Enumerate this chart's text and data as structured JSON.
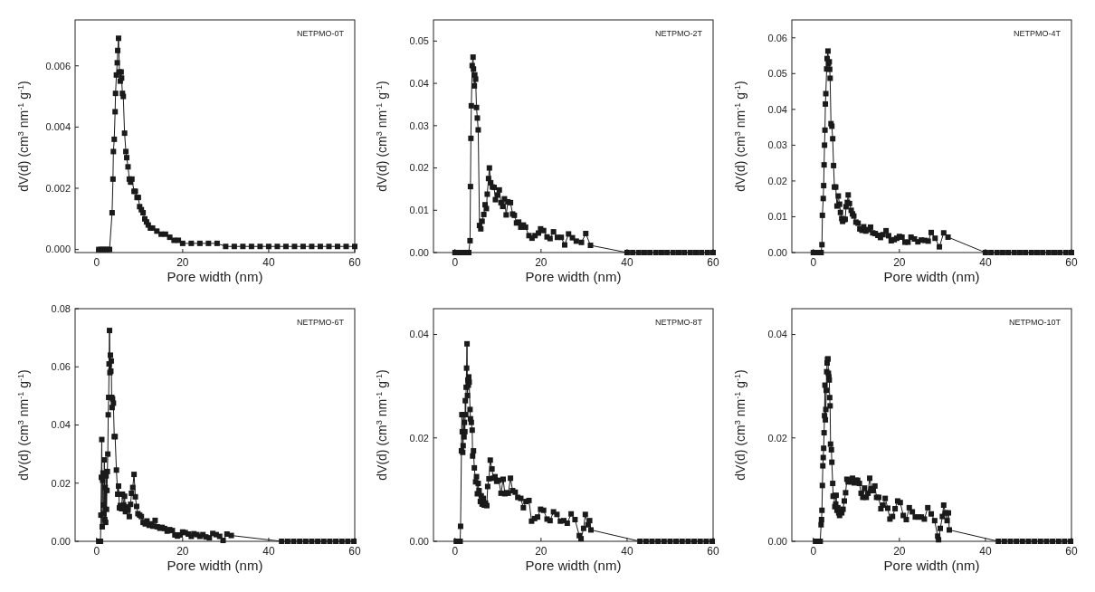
{
  "chart_data": [
    {
      "type": "line",
      "annotations": [
        "NETPMO-0T"
      ],
      "xlabel": "Pore width (nm)",
      "ylabel": "dV(d) (cm$^{3}$ nm$^{-1}$ g$^{-1}$)",
      "xlim": [
        -5,
        60
      ],
      "ylim": [
        -0.0001,
        0.0075
      ],
      "xticks": [
        0,
        20,
        40,
        60
      ],
      "yticks": [
        {
          "value": 0,
          "label": "0.000"
        },
        {
          "value": 0.002,
          "label": "0.002"
        },
        {
          "value": 0.004,
          "label": "0.004"
        },
        {
          "value": 0.006,
          "label": "0.006"
        }
      ],
      "marker": "square",
      "series": [
        {
          "color": "#1a1a1a",
          "x": [
            0.5,
            1,
            1.5,
            2,
            2.5,
            3,
            3.6,
            3.8,
            3.9,
            4.1,
            4.3,
            4.4,
            4.6,
            4.8,
            4.9,
            5.1,
            5.3,
            5.5,
            5.7,
            5.8,
            6.0,
            6.2,
            6.5,
            6.8,
            7.0,
            7.3,
            7.6,
            7.9,
            8.2,
            8.7,
            9.0,
            9.4,
            9.7,
            10.0,
            10.4,
            10.8,
            11.2,
            11.6,
            12.0,
            12.5,
            13,
            14,
            15,
            16,
            17,
            18,
            19,
            20,
            22,
            24,
            26,
            28,
            30,
            32,
            34,
            36,
            38,
            40,
            42,
            44,
            46,
            48,
            50,
            52,
            54,
            56,
            58,
            60
          ],
          "values": [
            0,
            0,
            0,
            0,
            0,
            0,
            0.0012,
            0.0023,
            0.0032,
            0.0036,
            0.0045,
            0.0051,
            0.0057,
            0.0061,
            0.0065,
            0.0069,
            0.0058,
            0.0055,
            0.0058,
            0.0056,
            0.0051,
            0.005,
            0.0038,
            0.0032,
            0.003,
            0.0027,
            0.0023,
            0.0022,
            0.0023,
            0.0019,
            0.0019,
            0.0017,
            0.0017,
            0.0014,
            0.0013,
            0.0012,
            0.001,
            0.0009,
            0.0008,
            0.0007,
            0.0007,
            0.0006,
            0.0005,
            0.0005,
            0.0004,
            0.0003,
            0.0003,
            0.0002,
            0.0002,
            0.0002,
            0.0002,
            0.0002,
            0.0001,
            0.0001,
            0.0001,
            0.0001,
            0.0001,
            0.0001,
            0.0001,
            0.0001,
            0.0001,
            0.0001,
            0.0001,
            0.0001,
            0.0001,
            0.0001,
            0.0001,
            0.0001
          ]
        }
      ]
    },
    {
      "type": "line",
      "annotations": [
        "NETPMO-2T"
      ],
      "xlabel": "Pore width (nm)",
      "ylabel": "dV(d) (cm$^{3}$ nm$^{-1}$ g$^{-1}$)",
      "xlim": [
        -5,
        60
      ],
      "ylim": [
        0,
        0.055
      ],
      "xticks": [
        0,
        20,
        40,
        60
      ],
      "yticks": [
        {
          "value": 0,
          "label": "0.00"
        },
        {
          "value": 0.01,
          "label": "0.01"
        },
        {
          "value": 0.02,
          "label": "0.02"
        },
        {
          "value": 0.03,
          "label": "0.03"
        },
        {
          "value": 0.04,
          "label": "0.04"
        },
        {
          "value": 0.05,
          "label": "0.05"
        }
      ],
      "marker": "square",
      "series": [
        {
          "color": "#1a1a1a",
          "x": [
            0,
            0.5,
            1,
            1.5,
            2,
            2.5,
            3,
            3.2,
            3.5,
            3.6,
            3.7,
            3.8,
            4.0,
            4.2,
            4.3,
            4.5,
            4.6,
            4.8,
            5.0,
            5.2,
            5.4,
            5.7,
            6.0,
            6.3,
            6.7,
            7.0,
            7.3,
            7.5,
            7.8,
            8.0,
            8.3,
            8.7,
            9.1,
            9.4,
            9.9,
            10.3,
            10.7,
            11.1,
            11.5,
            11.9,
            12.3,
            12.9,
            13.4,
            13.8,
            14.3,
            14.8,
            15.3,
            15.9,
            16.4,
            17.2,
            17.9,
            18.6,
            19.4,
            19.9,
            20.6,
            21.4,
            22.1,
            22.9,
            23.8,
            24.7,
            25.5,
            26.4,
            27.3,
            28.2,
            29.4,
            30.4,
            31.5,
            40,
            41.3,
            42.7,
            44,
            45.3,
            46.7,
            48,
            49.3,
            50.7,
            52,
            53.3,
            54.7,
            56,
            57.3,
            58.7,
            60
          ],
          "values": [
            0,
            0,
            0,
            0,
            0,
            0,
            0,
            0,
            0.0028,
            0.0156,
            0.027,
            0.0347,
            0.0442,
            0.0462,
            0.0434,
            0.0394,
            0.042,
            0.041,
            0.0343,
            0.0318,
            0.029,
            0.0064,
            0.0056,
            0.0074,
            0.009,
            0.0113,
            0.0104,
            0.0138,
            0.0175,
            0.02,
            0.0165,
            0.0155,
            0.0154,
            0.0125,
            0.0136,
            0.0148,
            0.0118,
            0.0109,
            0.0127,
            0.0089,
            0.012,
            0.0118,
            0.0091,
            0.0088,
            0.007,
            0.0072,
            0.006,
            0.0065,
            0.006,
            0.004,
            0.0034,
            0.004,
            0.0046,
            0.0056,
            0.0052,
            0.0037,
            0.0033,
            0.0049,
            0.0036,
            0.0036,
            0.0018,
            0.0044,
            0.0035,
            0.0027,
            0.0024,
            0.0045,
            0.0017,
            0,
            0,
            0,
            0,
            0,
            0,
            0,
            0,
            0,
            0,
            0,
            0,
            0,
            0,
            0,
            0
          ]
        }
      ]
    },
    {
      "type": "line",
      "annotations": [
        "NETPMO-4T"
      ],
      "xlabel": "Pore width (nm)",
      "ylabel": "dV(d) (cm$^{3}$ nm$^{-1}$ g$^{-1}$)",
      "xlim": [
        -5,
        60
      ],
      "ylim": [
        0,
        0.065
      ],
      "xticks": [
        0,
        20,
        40,
        60
      ],
      "yticks": [
        {
          "value": 0,
          "label": "0.00"
        },
        {
          "value": 0.01,
          "label": "0.01"
        },
        {
          "value": 0.02,
          "label": "0.02"
        },
        {
          "value": 0.03,
          "label": "0.03"
        },
        {
          "value": 0.04,
          "label": "0.04"
        },
        {
          "value": 0.05,
          "label": "0.05"
        },
        {
          "value": 0.06,
          "label": "0.06"
        }
      ],
      "marker": "square",
      "series": [
        {
          "color": "#1a1a1a",
          "x": [
            0,
            0.5,
            1,
            1.5,
            1.8,
            2.0,
            2.1,
            2.3,
            2.4,
            2.5,
            2.6,
            2.7,
            2.8,
            2.9,
            3.1,
            3.2,
            3.4,
            3.5,
            3.7,
            3.8,
            3.9,
            4.1,
            4.3,
            4.5,
            4.7,
            4.9,
            5.2,
            5.5,
            5.8,
            6.1,
            6.3,
            6.6,
            6.8,
            7.1,
            7.4,
            7.6,
            7.9,
            8.1,
            8.4,
            8.8,
            9.1,
            9.4,
            9.9,
            10.4,
            10.8,
            11.3,
            11.7,
            12.2,
            12.8,
            13.3,
            13.8,
            14.4,
            15,
            15.6,
            16.2,
            16.9,
            17.5,
            18.1,
            18.8,
            19.4,
            20,
            20.6,
            21.3,
            22,
            22.7,
            23.5,
            24.3,
            25.1,
            25.9,
            26.7,
            27.4,
            28.3,
            29.3,
            30.3,
            31.3,
            40,
            41.3,
            42.7,
            44,
            45.3,
            46.7,
            48,
            49.3,
            50.7,
            52,
            53.3,
            54.7,
            56,
            57.3,
            58.7,
            60
          ],
          "values": [
            0,
            0,
            0,
            0,
            0,
            0.0022,
            0.0104,
            0.0151,
            0.0187,
            0.0245,
            0.03,
            0.0342,
            0.0415,
            0.0444,
            0.0513,
            0.0542,
            0.0563,
            0.0528,
            0.0533,
            0.0512,
            0.0487,
            0.036,
            0.0353,
            0.0318,
            0.0243,
            0.0183,
            0.0183,
            0.013,
            0.0158,
            0.0135,
            0.0112,
            0.0095,
            0.0087,
            0.0092,
            0.0093,
            0.0128,
            0.014,
            0.0161,
            0.0137,
            0.0118,
            0.0108,
            0.0102,
            0.0085,
            0.0082,
            0.0066,
            0.0062,
            0.0072,
            0.006,
            0.0064,
            0.0071,
            0.0055,
            0.0053,
            0.0048,
            0.0042,
            0.005,
            0.0061,
            0.0047,
            0.0033,
            0.0036,
            0.004,
            0.0045,
            0.0043,
            0.0029,
            0.0029,
            0.0043,
            0.0038,
            0.003,
            0.0035,
            0.0034,
            0.0032,
            0.0056,
            0.004,
            0.0016,
            0.0055,
            0.0043,
            0,
            0,
            0,
            0,
            0,
            0,
            0,
            0,
            0,
            0,
            0,
            0,
            0,
            0,
            0,
            0
          ]
        }
      ]
    },
    {
      "type": "line",
      "annotations": [
        "NETPMO-6T"
      ],
      "xlabel": "Pore width (nm)",
      "ylabel": "dV(d) (cm$^{3}$ nm$^{-1}$ g$^{-1}$)",
      "xlim": [
        -5,
        60
      ],
      "ylim": [
        0,
        0.08
      ],
      "xticks": [
        0,
        20,
        40,
        60
      ],
      "yticks": [
        {
          "value": 0,
          "label": "0.00"
        },
        {
          "value": 0.02,
          "label": "0.02"
        },
        {
          "value": 0.04,
          "label": "0.04"
        },
        {
          "value": 0.06,
          "label": "0.06"
        },
        {
          "value": 0.08,
          "label": "0.08"
        }
      ],
      "marker": "square",
      "series": [
        {
          "color": "#1a1a1a",
          "x": [
            0.5,
            0.9,
            1.0,
            1.1,
            1.2,
            1.3,
            1.4,
            1.5,
            1.6,
            1.7,
            1.8,
            1.9,
            2.0,
            2.1,
            2.2,
            2.3,
            2.4,
            2.5,
            2.6,
            2.7,
            2.8,
            2.9,
            3.0,
            3.1,
            3.2,
            3.3,
            3.4,
            3.5,
            3.6,
            3.7,
            3.9,
            4.1,
            4.3,
            4.6,
            4.9,
            5.1,
            5.3,
            5.5,
            5.8,
            6.0,
            6.3,
            6.5,
            6.7,
            7.0,
            7.3,
            7.6,
            7.9,
            8.1,
            8.4,
            8.7,
            9.0,
            9.3,
            9.6,
            10.0,
            10.4,
            10.8,
            11.3,
            11.7,
            12.2,
            12.7,
            13.1,
            13.6,
            14.1,
            14.7,
            15.2,
            15.8,
            16.4,
            17,
            17.6,
            18.2,
            18.8,
            19.4,
            20,
            20.6,
            21.3,
            22,
            22.6,
            23.3,
            24,
            24.7,
            25.4,
            26.2,
            27,
            27.8,
            28.6,
            29.4,
            30.3,
            31.3,
            43,
            44.4,
            45.8,
            47.2,
            48.6,
            50,
            51.4,
            52.8,
            54.2,
            55.6,
            57,
            58.4,
            59.8
          ],
          "values": [
            0,
            0,
            0.009,
            0.022,
            0.035,
            0.005,
            0.021,
            0.0235,
            0.0125,
            0.0095,
            0.028,
            0.0075,
            0.0185,
            0.0065,
            0.0225,
            0.011,
            0.0175,
            0.024,
            0.03,
            0.0435,
            0.0495,
            0.061,
            0.0725,
            0.058,
            0.064,
            0.0585,
            0.062,
            0.0495,
            0.046,
            0.049,
            0.0475,
            0.036,
            0.036,
            0.0245,
            0.0162,
            0.019,
            0.0115,
            0.0123,
            0.0112,
            0.0162,
            0.0125,
            0.0155,
            0.0102,
            0.0118,
            0.0108,
            0.0085,
            0.0127,
            0.0165,
            0.0185,
            0.023,
            0.0153,
            0.012,
            0.0095,
            0.009,
            0.0085,
            0.0065,
            0.006,
            0.007,
            0.0055,
            0.006,
            0.0052,
            0.0072,
            0.005,
            0.0045,
            0.0048,
            0.0044,
            0.0035,
            0.004,
            0.0037,
            0.0022,
            0.0018,
            0.0022,
            0.0032,
            0.003,
            0.0025,
            0.0017,
            0.0026,
            0.0023,
            0.0017,
            0.0023,
            0.0015,
            0.0012,
            0.0027,
            0.0023,
            0.0017,
            0.0003,
            0.0025,
            0.002,
            0,
            0,
            0,
            0,
            0,
            0,
            0,
            0,
            0,
            0,
            0,
            0,
            0
          ]
        }
      ]
    },
    {
      "type": "line",
      "annotations": [
        "NETPMO-8T"
      ],
      "xlabel": "Pore width (nm)",
      "ylabel": "dV(d) (cm$^{3}$ nm$^{-1}$ g$^{-1}$)",
      "xlim": [
        -5,
        60
      ],
      "ylim": [
        0,
        0.045
      ],
      "xticks": [
        0,
        20,
        40,
        60
      ],
      "yticks": [
        {
          "value": 0,
          "label": "0.00"
        },
        {
          "value": 0.02,
          "label": "0.02"
        },
        {
          "value": 0.04,
          "label": "0.04"
        }
      ],
      "marker": "square",
      "series": [
        {
          "color": "#1a1a1a",
          "x": [
            0.3,
            0.8,
            1.2,
            1.3,
            1.5,
            1.6,
            1.7,
            1.8,
            1.9,
            2.0,
            2.1,
            2.2,
            2.3,
            2.4,
            2.5,
            2.6,
            2.7,
            2.8,
            2.9,
            3.0,
            3.1,
            3.2,
            3.3,
            3.5,
            3.6,
            3.8,
            4.0,
            4.1,
            4.3,
            4.5,
            4.8,
            5.0,
            5.2,
            5.4,
            5.6,
            5.9,
            6.1,
            6.3,
            6.6,
            6.8,
            7.1,
            7.4,
            7.6,
            7.9,
            8.2,
            8.6,
            8.9,
            9.3,
            9.7,
            10.2,
            10.7,
            11.2,
            11.6,
            12.0,
            12.4,
            12.9,
            13.4,
            14.0,
            14.6,
            15.3,
            15.9,
            16.5,
            17.2,
            17.8,
            18.5,
            19.2,
            19.9,
            20.6,
            21.4,
            22.1,
            22.9,
            23.7,
            24.5,
            25.3,
            26.1,
            27,
            27.9,
            28.9,
            29.3,
            29.9,
            30.3,
            30.9,
            31.3,
            31.6,
            43,
            44.4,
            45.8,
            47.2,
            48.6,
            50,
            51.4,
            52.8,
            54.2,
            55.6,
            57,
            58.4,
            59.8
          ],
          "values": [
            0,
            0,
            0,
            0.0029,
            0.0175,
            0.0245,
            0.0212,
            0.0172,
            0.0185,
            0.0245,
            0.0202,
            0.023,
            0.0212,
            0.0272,
            0.0245,
            0.0298,
            0.0335,
            0.0382,
            0.0282,
            0.0312,
            0.0302,
            0.0318,
            0.0308,
            0.0255,
            0.0237,
            0.023,
            0.0215,
            0.0165,
            0.0175,
            0.0142,
            0.0115,
            0.0125,
            0.0092,
            0.0112,
            0.0098,
            0.0077,
            0.0088,
            0.0072,
            0.0083,
            0.007,
            0.0074,
            0.0069,
            0.0106,
            0.0121,
            0.0157,
            0.014,
            0.0122,
            0.0125,
            0.0116,
            0.0118,
            0.0093,
            0.012,
            0.0092,
            0.0094,
            0.0093,
            0.0122,
            0.0098,
            0.0095,
            0.0085,
            0.0083,
            0.0065,
            0.0077,
            0.0079,
            0.0039,
            0.0044,
            0.0047,
            0.0062,
            0.006,
            0.0043,
            0.004,
            0.0057,
            0.0052,
            0.0039,
            0.004,
            0.0035,
            0.0053,
            0.0042,
            0.0011,
            0.0005,
            0.0025,
            0.0052,
            0.0032,
            0.004,
            0.0022,
            0,
            0,
            0,
            0,
            0,
            0,
            0,
            0,
            0,
            0,
            0,
            0,
            0
          ]
        }
      ]
    },
    {
      "type": "line",
      "annotations": [
        "NETPMO-10T"
      ],
      "xlabel": "Pore width (nm)",
      "ylabel": "dV(d) (cm$^{3}$ nm$^{-1}$ g$^{-1}$)",
      "xlim": [
        -5,
        60
      ],
      "ylim": [
        0,
        0.045
      ],
      "xticks": [
        0,
        20,
        40,
        60
      ],
      "yticks": [
        {
          "value": 0,
          "label": "0.00"
        },
        {
          "value": 0.02,
          "label": "0.02"
        },
        {
          "value": 0.04,
          "label": "0.04"
        }
      ],
      "marker": "square",
      "series": [
        {
          "color": "#1a1a1a",
          "x": [
            0.5,
            1.2,
            1.6,
            1.8,
            1.9,
            2.0,
            2.1,
            2.2,
            2.3,
            2.4,
            2.5,
            2.6,
            2.7,
            2.8,
            2.9,
            3.0,
            3.1,
            3.2,
            3.3,
            3.4,
            3.5,
            3.6,
            3.7,
            3.8,
            3.9,
            4.0,
            4.2,
            4.3,
            4.5,
            4.6,
            4.8,
            5.0,
            5.2,
            5.3,
            5.5,
            5.7,
            5.9,
            6.1,
            6.3,
            6.6,
            6.9,
            7.2,
            7.5,
            7.8,
            8.1,
            8.4,
            8.8,
            9.1,
            9.5,
            9.9,
            10.3,
            10.7,
            11.1,
            11.5,
            11.9,
            12.3,
            12.7,
            13.1,
            13.5,
            13.9,
            14.3,
            14.7,
            15.2,
            15.7,
            16.2,
            16.7,
            17.3,
            17.8,
            18.4,
            19.0,
            19.6,
            20.2,
            20.9,
            21.6,
            22.3,
            23.0,
            23.7,
            24.4,
            25.1,
            25.8,
            26.6,
            27.4,
            28.2,
            28.9,
            29.1,
            29.5,
            30,
            30.3,
            30.7,
            31.1,
            31.4,
            31.6,
            43,
            44.4,
            45.8,
            47.2,
            48.6,
            50,
            51.4,
            52.8,
            54.2,
            55.6,
            57,
            58.4,
            59.8
          ],
          "values": [
            0,
            0,
            0,
            0.0032,
            0.0042,
            0.006,
            0.0108,
            0.0146,
            0.0162,
            0.018,
            0.021,
            0.0243,
            0.0302,
            0.0235,
            0.0255,
            0.0292,
            0.0328,
            0.0345,
            0.0352,
            0.0353,
            0.0325,
            0.0318,
            0.0312,
            0.0278,
            0.0262,
            0.0188,
            0.0177,
            0.0153,
            0.0112,
            0.0087,
            0.0088,
            0.0067,
            0.0072,
            0.0089,
            0.006,
            0.0065,
            0.0055,
            0.005,
            0.0058,
            0.0055,
            0.0062,
            0.0078,
            0.0094,
            0.012,
            0.0115,
            0.0118,
            0.0115,
            0.0122,
            0.0113,
            0.0118,
            0.0118,
            0.0112,
            0.0093,
            0.0085,
            0.0103,
            0.0085,
            0.0093,
            0.0122,
            0.0102,
            0.0098,
            0.0107,
            0.0085,
            0.0085,
            0.0063,
            0.007,
            0.0083,
            0.0064,
            0.0043,
            0.0048,
            0.0063,
            0.0078,
            0.0075,
            0.005,
            0.0042,
            0.0065,
            0.0057,
            0.0047,
            0.0047,
            0.0047,
            0.0043,
            0.0065,
            0.0053,
            0.004,
            0.001,
            0.0003,
            0.0025,
            0.0048,
            0.007,
            0.0055,
            0.004,
            0.0055,
            0.0022,
            0,
            0,
            0,
            0,
            0,
            0,
            0,
            0,
            0,
            0,
            0,
            0,
            0
          ]
        }
      ]
    }
  ]
}
